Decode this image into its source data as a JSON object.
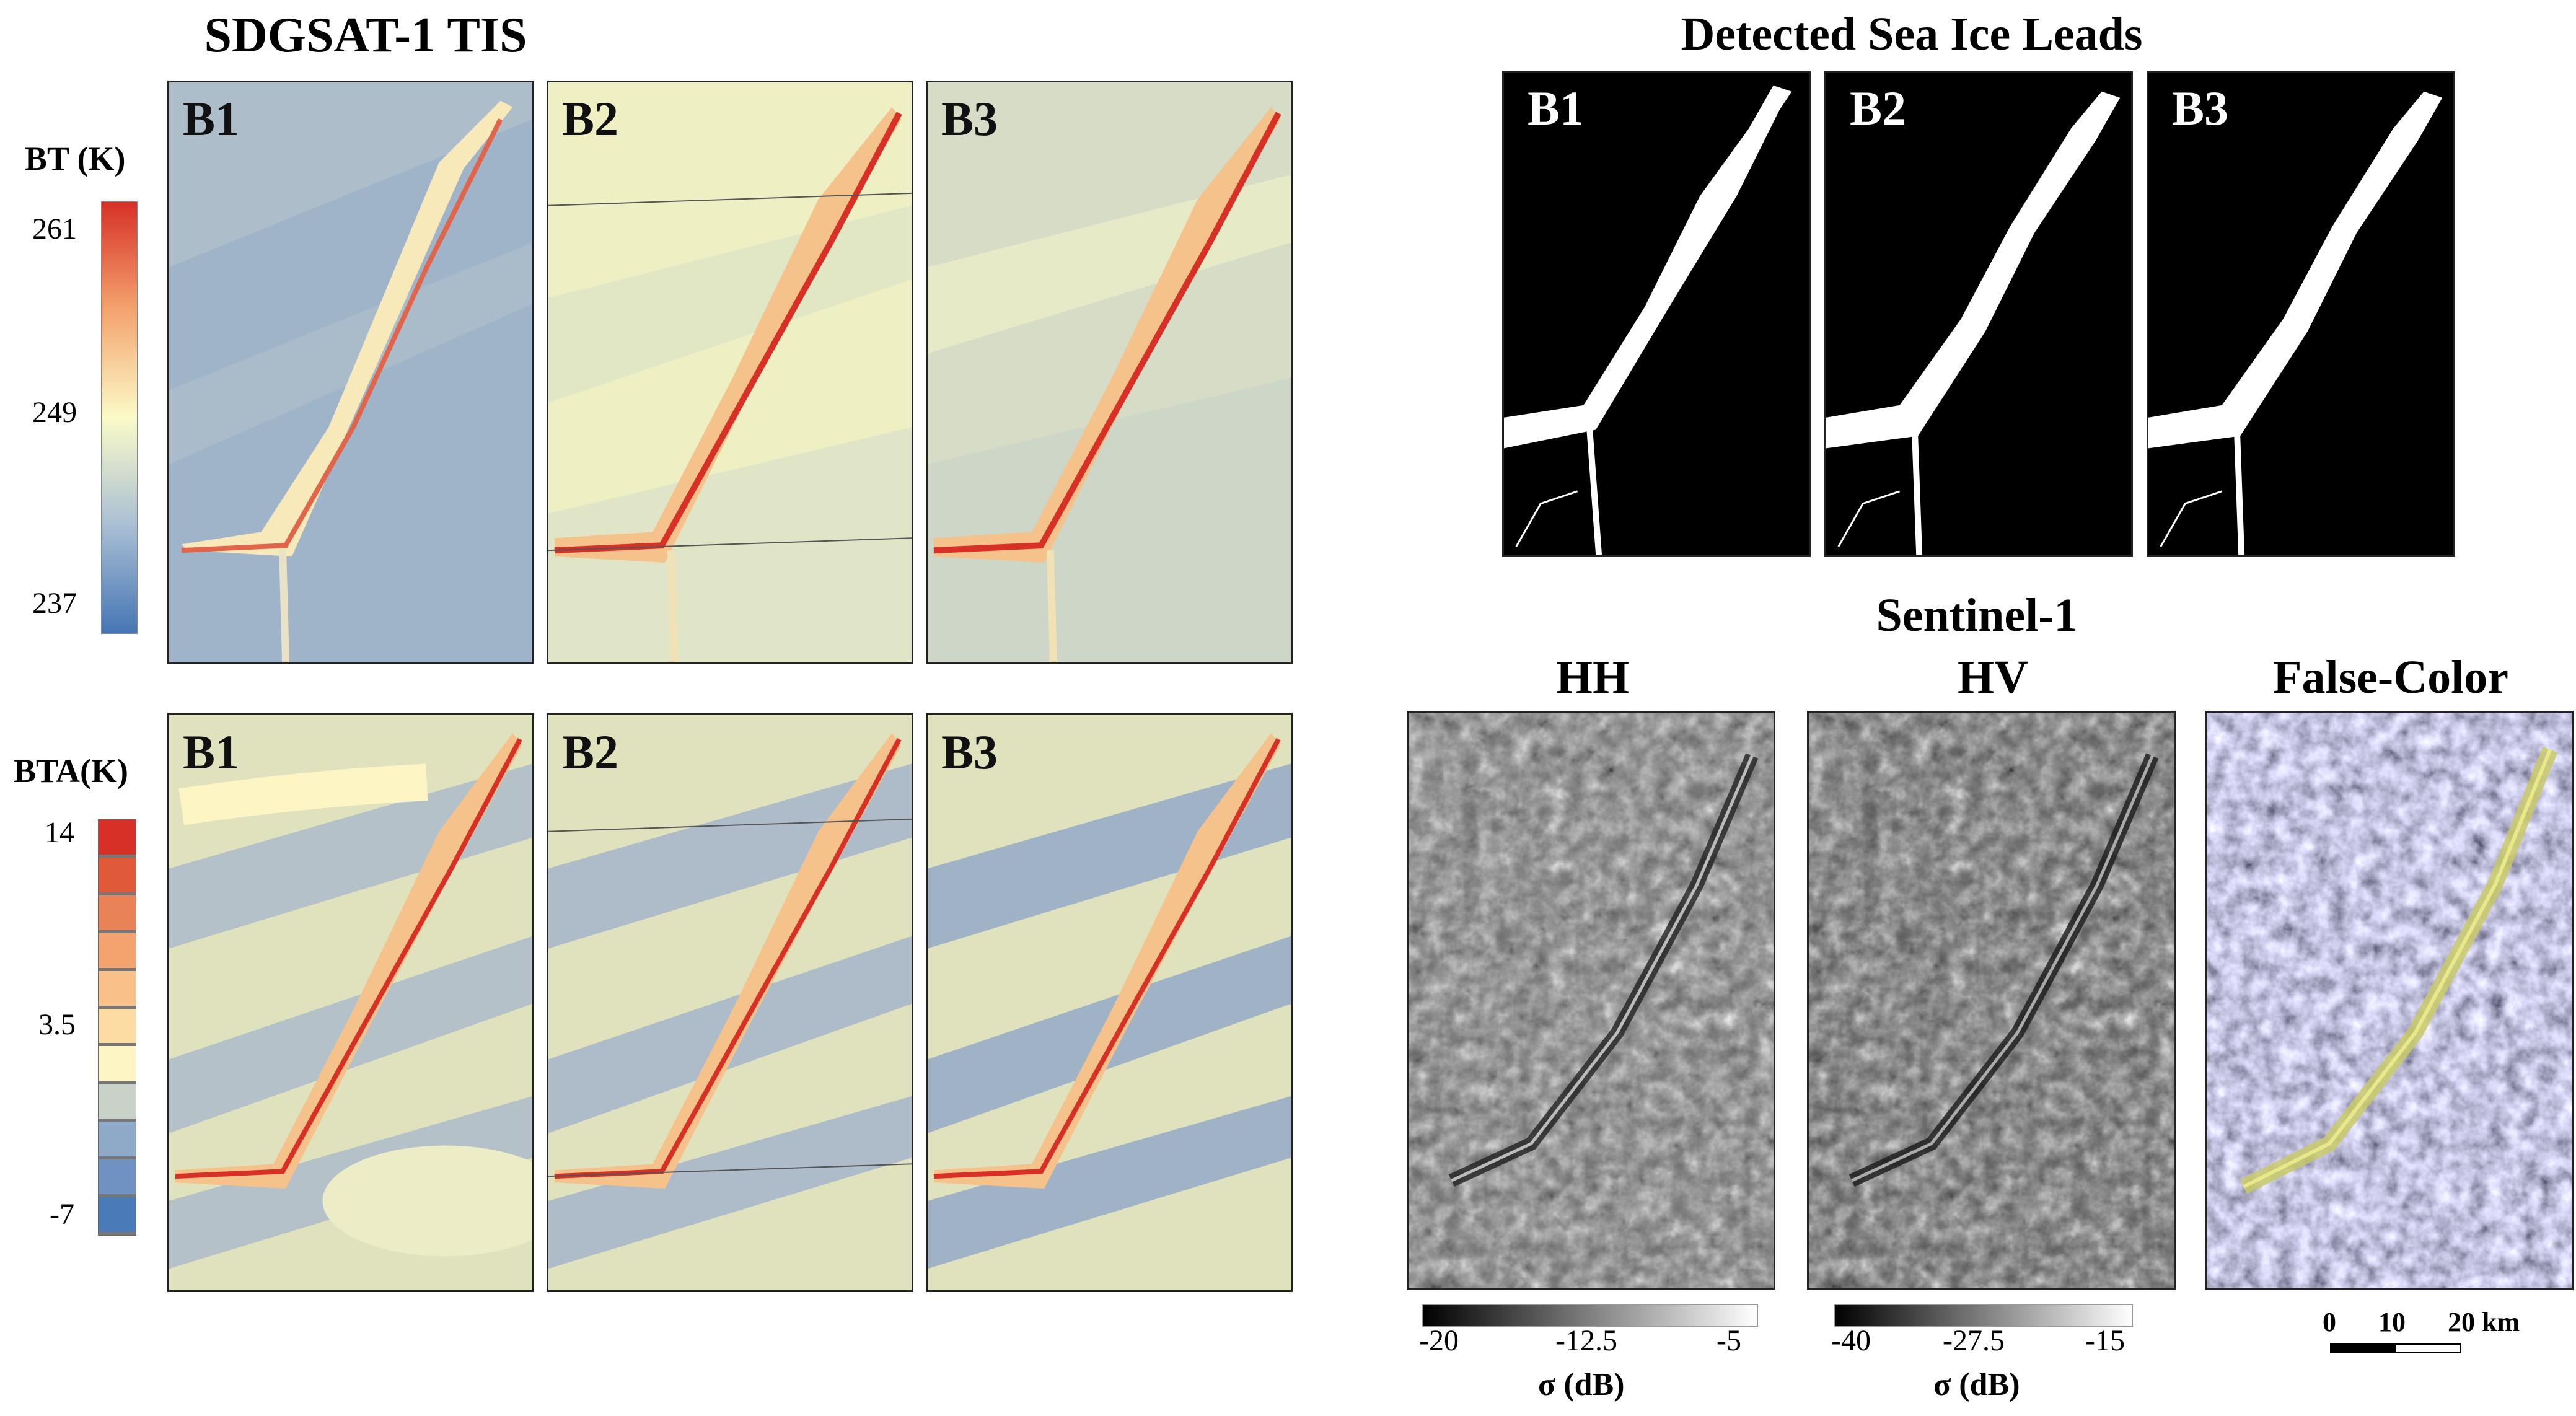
{
  "left": {
    "title": "SDGSAT-1 TIS",
    "bt_colorbar": {
      "label": "BT (K)",
      "ticks": [
        "261",
        "249",
        "237"
      ]
    },
    "bta_colorbar": {
      "label": "BTA(K)",
      "ticks": [
        "14",
        "3.5",
        "-7"
      ],
      "classes": [
        "#d73027",
        "#e05a3a",
        "#ea8258",
        "#f4a36e",
        "#f9c08a",
        "#fddca4",
        "#fdf6c4",
        "#c8d2c8",
        "#8fa9c9",
        "#6f92c2",
        "#4a7ab8"
      ]
    },
    "bt_row": [
      "B1",
      "B2",
      "B3"
    ],
    "bta_row": [
      "B1",
      "B2",
      "B3"
    ]
  },
  "leads": {
    "title": "Detected Sea Ice Leads",
    "bands": [
      "B1",
      "B2",
      "B3"
    ]
  },
  "sentinel": {
    "title": "Sentinel-1",
    "panels": [
      {
        "label": "HH",
        "ticks": [
          "-20",
          "-12.5",
          "-5"
        ],
        "unit": "σ (dB)"
      },
      {
        "label": "HV",
        "ticks": [
          "-40",
          "-27.5",
          "-15"
        ],
        "unit": "σ (dB)"
      },
      {
        "label": "False-Color"
      }
    ],
    "scalebar": {
      "labels": [
        "0",
        "10",
        "20 km"
      ]
    }
  },
  "colors": {
    "bt_high": "#d73027",
    "bt_mid": "#fbfbc8",
    "bt_low": "#4575b4"
  }
}
